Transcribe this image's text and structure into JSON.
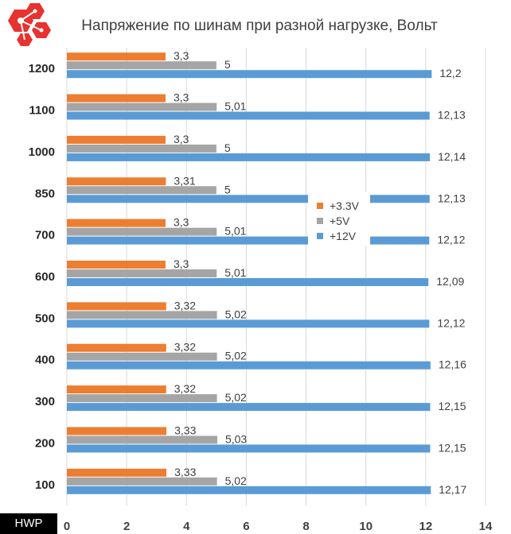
{
  "chart_data": {
    "type": "bar",
    "orientation": "horizontal",
    "title": "Напряжение по шинам при разной нагрузке, Вольт",
    "categories": [
      "1200",
      "1100",
      "1000",
      "850",
      "700",
      "600",
      "500",
      "400",
      "300",
      "200",
      "100"
    ],
    "series": [
      {
        "name": "+3.3V",
        "color": "#ed7d31",
        "values": [
          3.3,
          3.3,
          3.3,
          3.31,
          3.3,
          3.3,
          3.32,
          3.32,
          3.32,
          3.33,
          3.33
        ],
        "labels": [
          "3,3",
          "3,3",
          "3,3",
          "3,31",
          "3,3",
          "3,3",
          "3,32",
          "3,32",
          "3,32",
          "3,33",
          "3,33"
        ]
      },
      {
        "name": "+5V",
        "color": "#a5a5a5",
        "values": [
          5,
          5.01,
          5,
          5,
          5.01,
          5.01,
          5.02,
          5.02,
          5.02,
          5.03,
          5.02
        ],
        "labels": [
          "5",
          "5,01",
          "5",
          "5",
          "5,01",
          "5,01",
          "5,02",
          "5,02",
          "5,02",
          "5,03",
          "5,02"
        ]
      },
      {
        "name": "+12V",
        "color": "#5b9bd5",
        "values": [
          12.2,
          12.13,
          12.14,
          12.13,
          12.12,
          12.09,
          12.12,
          12.16,
          12.15,
          12.15,
          12.17
        ],
        "labels": [
          "12,2",
          "12,13",
          "12,14",
          "12,13",
          "12,12",
          "12,09",
          "12,12",
          "12,16",
          "12,15",
          "12,15",
          "12,17"
        ]
      }
    ],
    "xlim": [
      0,
      14
    ],
    "xticks": [
      "0",
      "2",
      "4",
      "6",
      "8",
      "10",
      "12",
      "14"
    ],
    "grid": true,
    "legend": "center-right"
  },
  "watermark": "HWP",
  "logo": {
    "name": "hexagon-logo-icon",
    "color": "#e8322f"
  }
}
